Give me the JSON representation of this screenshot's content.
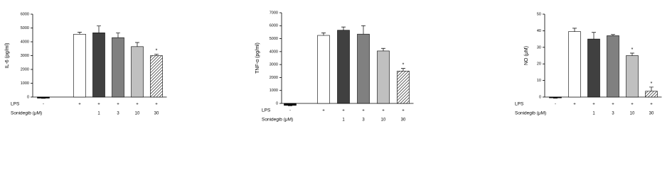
{
  "chart_data": [
    {
      "type": "bar",
      "y_label": "IL-6 (pg/ml)",
      "ylim": [
        0,
        6000
      ],
      "yticks": [
        0,
        1000,
        2000,
        3000,
        4000,
        5000,
        6000
      ],
      "values": [
        -80,
        4550,
        4650,
        4300,
        3650,
        3000
      ],
      "errors": [
        20,
        150,
        500,
        350,
        300,
        100
      ],
      "colors": [
        "#000000",
        "#ffffff",
        "#404040",
        "#808080",
        "#c0c0c0",
        "#ffffff"
      ],
      "hatched": [
        false,
        false,
        false,
        false,
        false,
        true
      ],
      "annotations": [
        null,
        null,
        null,
        null,
        null,
        "*"
      ],
      "rows": [
        {
          "name": "LPS",
          "labels": [
            "-",
            "+",
            "+",
            "+",
            "+",
            "+"
          ]
        },
        {
          "name": "Sonidegib (μM)",
          "labels": [
            null,
            null,
            "1",
            "3",
            "10",
            "30"
          ]
        }
      ]
    },
    {
      "type": "bar",
      "y_label": "TNF-α (pg/ml)",
      "ylim": [
        0,
        7000
      ],
      "yticks": [
        0,
        1000,
        2000,
        3000,
        4000,
        5000,
        6000,
        7000
      ],
      "values": [
        -150,
        5250,
        5650,
        5350,
        4050,
        2500
      ],
      "errors": [
        30,
        200,
        250,
        650,
        200,
        200
      ],
      "colors": [
        "#000000",
        "#ffffff",
        "#404040",
        "#808080",
        "#c0c0c0",
        "#ffffff"
      ],
      "hatched": [
        false,
        false,
        false,
        false,
        false,
        true
      ],
      "annotations": [
        null,
        null,
        null,
        null,
        null,
        "*"
      ],
      "rows": [
        {
          "name": "LPS",
          "labels": [
            "-",
            "+",
            "+",
            "+",
            "+",
            "+"
          ]
        },
        {
          "name": "Sonidegib (μM)",
          "labels": [
            null,
            null,
            "1",
            "3",
            "10",
            "30"
          ]
        }
      ]
    },
    {
      "type": "bar",
      "y_label": "NO (μM)",
      "ylim": [
        0,
        50
      ],
      "yticks": [
        0,
        10,
        20,
        30,
        40,
        50
      ],
      "values": [
        -0.5,
        39.5,
        35,
        37,
        25,
        3.5
      ],
      "errors": [
        0.2,
        2,
        4,
        0.7,
        1.5,
        2.5
      ],
      "colors": [
        "#000000",
        "#ffffff",
        "#404040",
        "#808080",
        "#c0c0c0",
        "#ffffff"
      ],
      "hatched": [
        false,
        false,
        false,
        false,
        false,
        true
      ],
      "annotations": [
        null,
        null,
        null,
        null,
        "*",
        "*"
      ],
      "rows": [
        {
          "name": "LPS",
          "labels": [
            "-",
            "+",
            "+",
            "+",
            "+",
            "+"
          ]
        },
        {
          "name": "Sonidegib (μM)",
          "labels": [
            null,
            null,
            "1",
            "3",
            "10",
            "30"
          ]
        }
      ]
    }
  ]
}
